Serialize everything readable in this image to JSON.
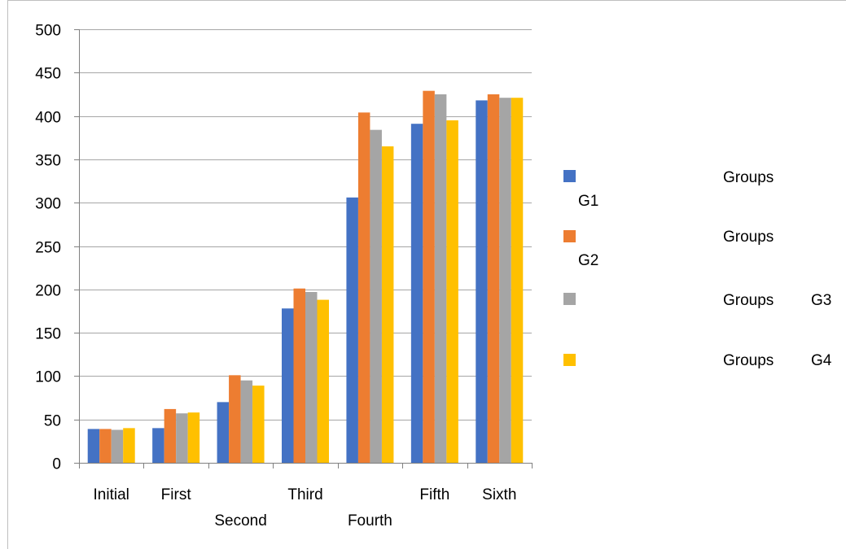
{
  "chart_data": {
    "type": "bar",
    "categories": [
      "Initial",
      "First",
      "Second",
      "Third",
      "Fourth",
      "Fifth",
      "Sixth"
    ],
    "series": [
      {
        "name": "Groups G1",
        "color": "#4472C4",
        "values": [
          39,
          40,
          70,
          178,
          306,
          391,
          418
        ]
      },
      {
        "name": "Groups G2",
        "color": "#ED7D31",
        "values": [
          39,
          62,
          101,
          201,
          404,
          429,
          425
        ]
      },
      {
        "name": "Groups G3",
        "color": "#A5A5A5",
        "values": [
          38,
          57,
          95,
          197,
          384,
          425,
          421
        ]
      },
      {
        "name": "Groups G4",
        "color": "#FFC000",
        "values": [
          40,
          58,
          89,
          188,
          365,
          395,
          421
        ]
      }
    ],
    "ylim": [
      0,
      500
    ],
    "yticks": [
      0,
      50,
      100,
      150,
      200,
      250,
      300,
      350,
      400,
      450,
      500
    ],
    "grid": true,
    "legend_position": "right",
    "title": "",
    "xlabel": "",
    "ylabel": ""
  },
  "legend": [
    {
      "word": "Groups",
      "code": "G1"
    },
    {
      "word": "Groups",
      "code": "G2"
    },
    {
      "word": "Groups",
      "code": "G3"
    },
    {
      "word": "Groups",
      "code": "G4"
    }
  ]
}
